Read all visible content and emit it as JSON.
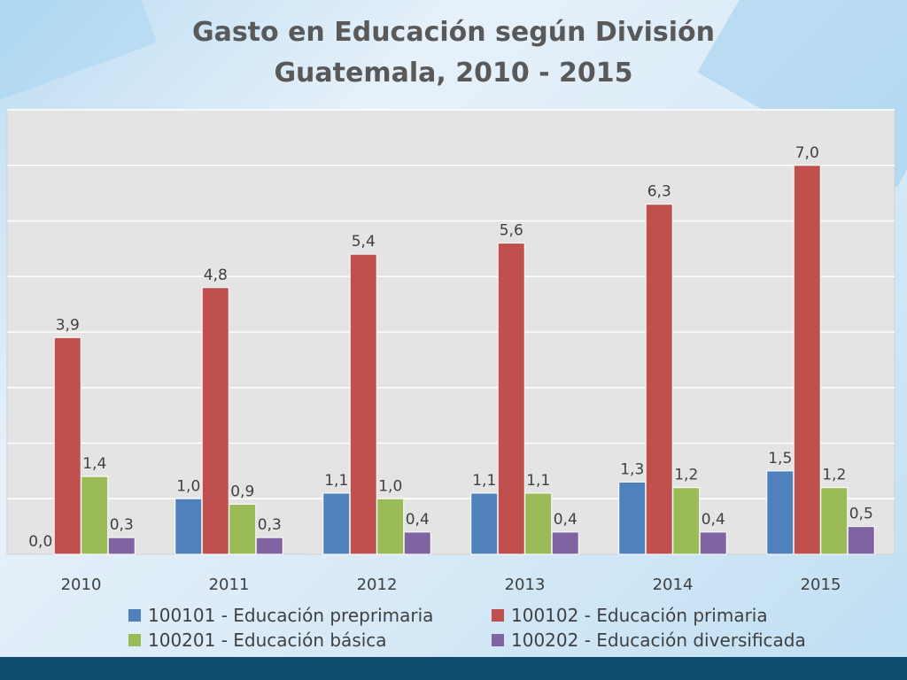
{
  "title_line1": "Gasto en Educación según División",
  "title_line2": "Guatemala, 2010 - 2015",
  "chart_data": {
    "type": "bar",
    "title": "Gasto en Educación según División Guatemala, 2010 - 2015",
    "categories": [
      "2010",
      "2011",
      "2012",
      "2013",
      "2014",
      "2015"
    ],
    "series": [
      {
        "name": "100101 - Educación preprimaria",
        "color": "#4f81bd",
        "values": [
          0.0,
          1.0,
          1.1,
          1.1,
          1.3,
          1.5
        ],
        "labels": [
          "0,0",
          "1,0",
          "1,1",
          "1,1",
          "1,3",
          "1,5"
        ]
      },
      {
        "name": "100102 - Educación primaria",
        "color": "#c0504d",
        "values": [
          3.9,
          4.8,
          5.4,
          5.6,
          6.3,
          7.0
        ],
        "labels": [
          "3,9",
          "4,8",
          "5,4",
          "5,6",
          "6,3",
          "7,0"
        ]
      },
      {
        "name": "100201 - Educación básica",
        "color": "#9bbb59",
        "values": [
          1.4,
          0.9,
          1.0,
          1.1,
          1.2,
          1.2
        ],
        "labels": [
          "1,4",
          "0,9",
          "1,0",
          "1,1",
          "1,2",
          "1,2"
        ]
      },
      {
        "name": "100202 - Educación diversificada",
        "color": "#8064a2",
        "values": [
          0.3,
          0.3,
          0.4,
          0.4,
          0.4,
          0.5
        ],
        "labels": [
          "0,3",
          "0,3",
          "0,4",
          "0,4",
          "0,4",
          "0,5"
        ]
      }
    ],
    "ylim": [
      0,
      8
    ],
    "y_gridline_step": 1,
    "grid": true,
    "legend_position": "bottom"
  }
}
